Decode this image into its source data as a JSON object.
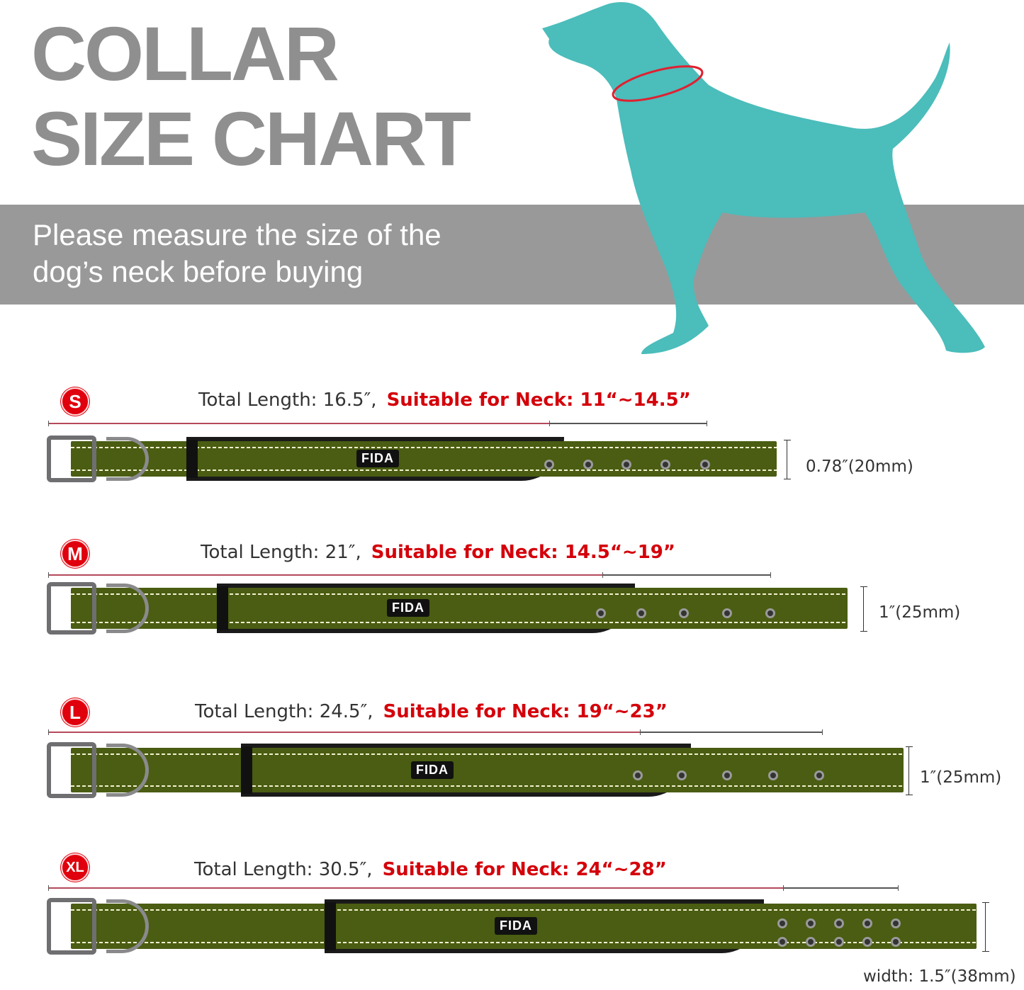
{
  "header": {
    "title_line1": "COLLAR",
    "title_line2": "SIZE CHART",
    "subtitle_line1": "Please measure the size of the",
    "subtitle_line2": "dog’s neck before buying"
  },
  "colors": {
    "title": "#8f8f8f",
    "band": "#999999",
    "dog": "#4bbdbb",
    "accent_red": "#d4000a",
    "collar_green": "#4a5d12"
  },
  "brand_logo": "FIDA",
  "sizes": [
    {
      "badge": "S",
      "total_length": "Total Length: 16.5″,",
      "neck": "Suitable for Neck: 11“~14.5”",
      "width": "0.78″(20mm)",
      "holes": 5
    },
    {
      "badge": "M",
      "total_length": "Total Length: 21″,",
      "neck": "Suitable for Neck: 14.5“~19”",
      "width": "1″(25mm)",
      "holes": 5
    },
    {
      "badge": "L",
      "total_length": "Total Length: 24.5″,",
      "neck": "Suitable for Neck: 19“~23”",
      "width": "1″(25mm)",
      "holes": 5
    },
    {
      "badge": "XL",
      "total_length": "Total Length: 30.5″,",
      "neck": "Suitable for Neck: 24“~28”",
      "width": "width: 1.5″(38mm)",
      "holes": 10
    }
  ]
}
